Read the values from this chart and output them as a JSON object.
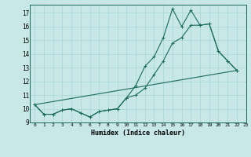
{
  "xlabel": "Humidex (Indice chaleur)",
  "xlim": [
    -0.5,
    23
  ],
  "ylim": [
    9,
    17.6
  ],
  "yticks": [
    9,
    10,
    11,
    12,
    13,
    14,
    15,
    16,
    17
  ],
  "xticks": [
    0,
    1,
    2,
    3,
    4,
    5,
    6,
    7,
    8,
    9,
    10,
    11,
    12,
    13,
    14,
    15,
    16,
    17,
    18,
    19,
    20,
    21,
    22,
    23
  ],
  "bg_color": "#c8e8e8",
  "line_color": "#1a6b5a",
  "grid_color": "#a8d4d4",
  "series1_x": [
    0,
    1,
    2,
    3,
    4,
    5,
    6,
    7,
    8,
    9,
    10,
    11,
    12,
    13,
    14,
    15,
    16,
    17,
    18,
    19,
    20,
    21,
    22
  ],
  "series1_y": [
    10.3,
    9.6,
    9.6,
    9.9,
    10.0,
    9.7,
    9.4,
    9.8,
    9.9,
    10.0,
    10.8,
    11.7,
    13.1,
    13.8,
    15.2,
    17.3,
    16.0,
    17.2,
    16.1,
    16.2,
    14.2,
    13.5,
    12.8
  ],
  "series2_x": [
    0,
    1,
    2,
    3,
    4,
    5,
    6,
    7,
    8,
    9,
    10,
    11,
    12,
    13,
    14,
    15,
    16,
    17,
    18,
    19,
    20,
    21,
    22
  ],
  "series2_y": [
    10.3,
    9.6,
    9.6,
    9.9,
    10.0,
    9.7,
    9.4,
    9.8,
    9.9,
    10.0,
    10.8,
    11.0,
    11.5,
    12.5,
    13.5,
    14.8,
    15.2,
    16.1,
    16.1,
    16.2,
    14.2,
    13.5,
    12.8
  ],
  "series3_x": [
    0,
    22
  ],
  "series3_y": [
    10.3,
    12.8
  ]
}
